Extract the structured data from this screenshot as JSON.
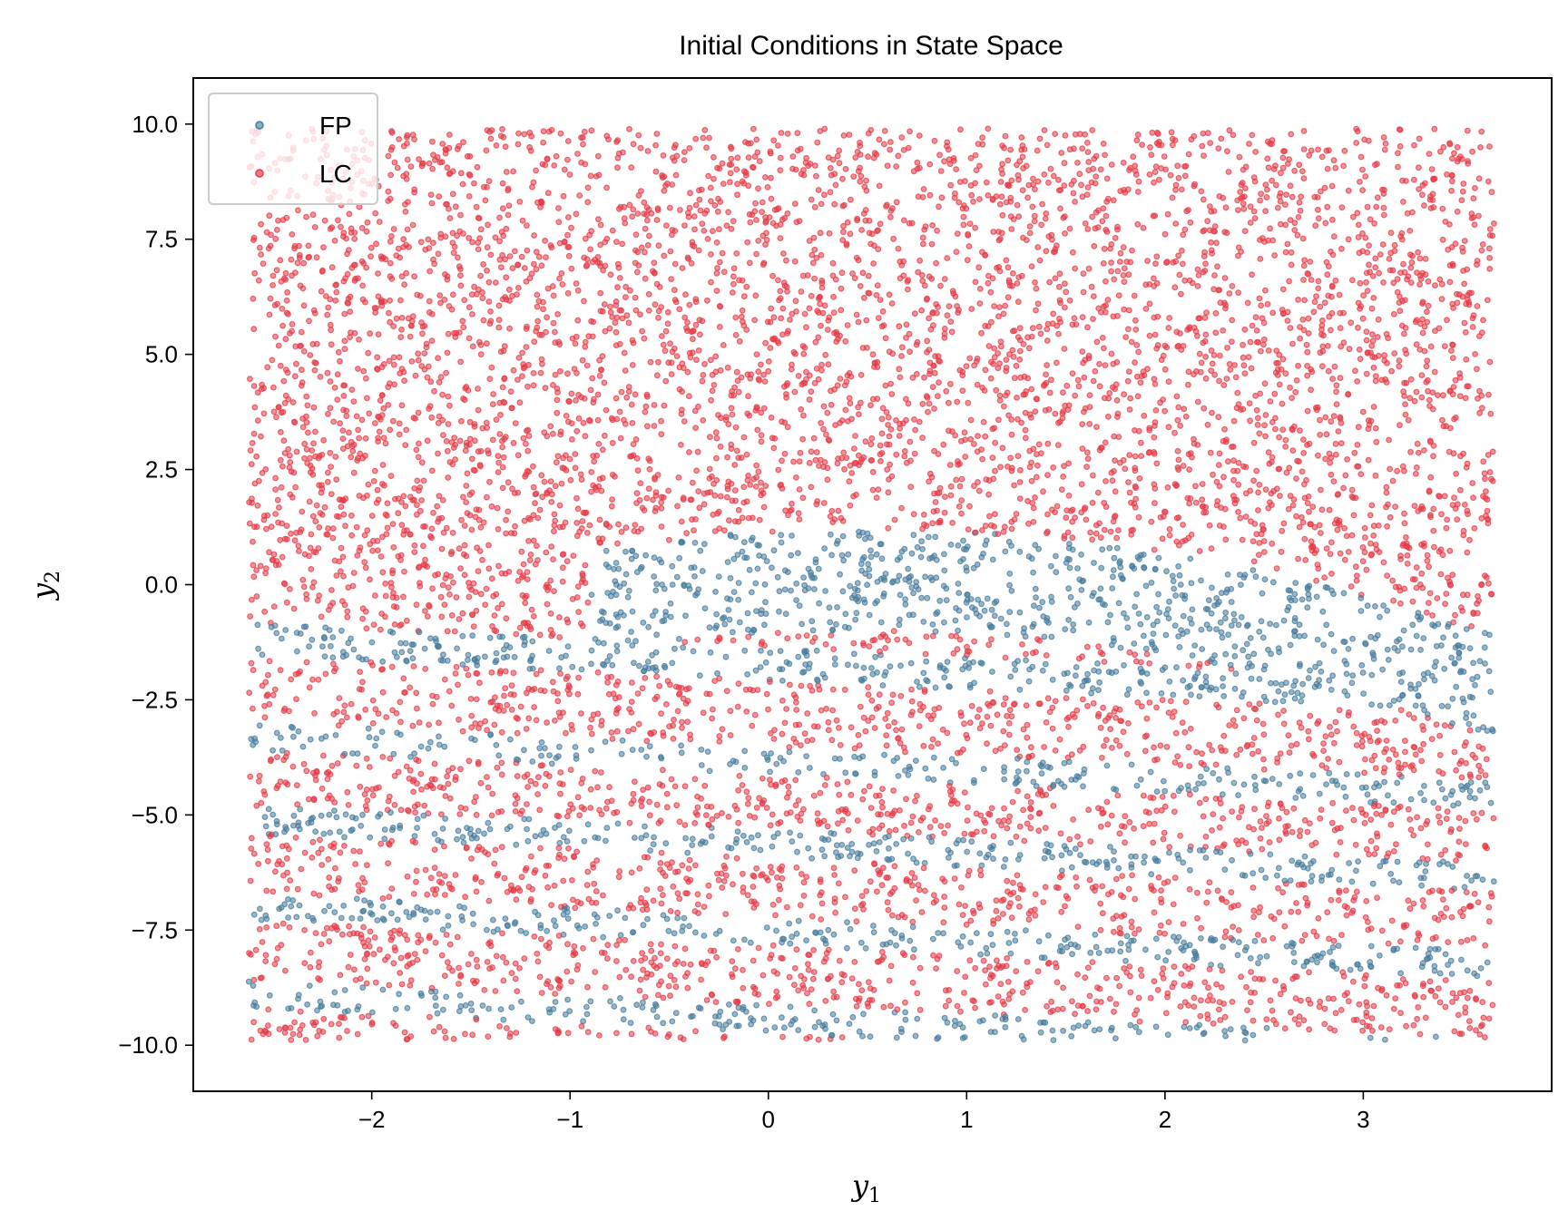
{
  "chart_data": {
    "type": "scatter",
    "title": "Initial Conditions in State Space",
    "xlabel": "y",
    "xlabel_sub": "1",
    "ylabel": "y",
    "ylabel_sub": "2",
    "xlim": [
      -2.9,
      3.95
    ],
    "ylim": [
      -11.0,
      11.0
    ],
    "xticks": [
      -2,
      -1,
      0,
      1,
      2,
      3
    ],
    "xtick_labels": [
      "−2",
      "−1",
      "0",
      "1",
      "2",
      "3"
    ],
    "yticks": [
      -10.0,
      -7.5,
      -5.0,
      -2.5,
      0.0,
      2.5,
      5.0,
      7.5,
      10.0
    ],
    "ytick_labels": [
      "−10.0",
      "−7.5",
      "−5.0",
      "−2.5",
      "0.0",
      "2.5",
      "5.0",
      "7.5",
      "10.0"
    ],
    "legend_position": "top-left",
    "sample_domain": {
      "x": [
        -2.62,
        3.66
      ],
      "y": [
        -9.9,
        9.9
      ]
    },
    "series": [
      {
        "name": "FP",
        "color": "#457b9d",
        "regions": [
          {
            "shape": "upper-arc",
            "x": [
              -0.9,
              3.7
            ],
            "center_x": 0.5,
            "peak_y": 1.2,
            "half_width": 3.6,
            "drop": 3.0,
            "thickness": 2.2
          },
          {
            "shape": "band",
            "x": [
              -2.62,
              3.66
            ],
            "y_at_start": -1.2,
            "slope": -0.2,
            "thickness": 0.35
          },
          {
            "shape": "band",
            "x": [
              -2.62,
              3.66
            ],
            "y_at_start": -3.3,
            "slope": -0.2,
            "thickness": 0.3
          },
          {
            "shape": "band",
            "x": [
              -2.62,
              3.66
            ],
            "y_at_start": -5.1,
            "slope": -0.2,
            "thickness": 0.3
          },
          {
            "shape": "band",
            "x": [
              -2.62,
              3.66
            ],
            "y_at_start": -7.0,
            "slope": -0.2,
            "thickness": 0.3
          },
          {
            "shape": "band",
            "x": [
              -2.62,
              3.66
            ],
            "y_at_start": -8.9,
            "slope": -0.2,
            "thickness": 0.3
          }
        ]
      },
      {
        "name": "LC",
        "color": "#e63946",
        "regions": [
          {
            "shape": "remainder"
          }
        ]
      }
    ]
  }
}
